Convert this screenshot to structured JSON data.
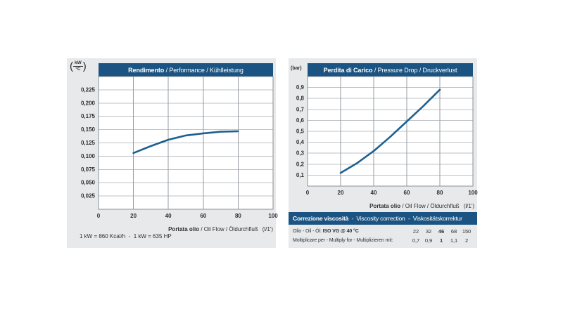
{
  "colors": {
    "panel_bg": "#e8e9ea",
    "header_bg": "#1b5482",
    "header_text": "#ffffff",
    "plot_bg": "#ffffff",
    "plot_border": "#8b9197",
    "grid_vertical": "#979da3",
    "grid_horizontal": "#bec2c6",
    "curve": "#1d608f",
    "text": "#2d3033"
  },
  "chart_data": [
    {
      "type": "line",
      "title": {
        "bold": "Rendimento",
        "rest": " / Performance / Kühlleistung"
      },
      "unit_label": {
        "numerator": "kW",
        "denominator": "°C"
      },
      "xlim": [
        0,
        100
      ],
      "ylim": [
        0,
        0.25
      ],
      "x_ticks": [
        0,
        20,
        40,
        60,
        80,
        100
      ],
      "x_tick_labels": [
        "0",
        "20",
        "40",
        "60",
        "80",
        "100"
      ],
      "y_ticks": [
        0.225,
        0.2,
        0.175,
        0.15,
        0.125,
        0.1,
        0.075,
        0.05,
        0.025
      ],
      "y_tick_labels": [
        "0,225",
        "0,200",
        "0,175",
        "0,150",
        "0,125",
        "0,100",
        "0,075",
        "0,050",
        "0,025"
      ],
      "grid": true,
      "legend": false,
      "series": [
        {
          "name": "cooling-performance",
          "x": [
            20,
            30,
            40,
            50,
            60,
            70,
            80
          ],
          "y": [
            0.106,
            0.119,
            0.131,
            0.139,
            0.143,
            0.146,
            0.147
          ]
        }
      ],
      "xlabel": {
        "bold": "Portata olio",
        "rest": " / Oil Flow / Öldurchfluß",
        "unit": "(l/1')"
      },
      "footnote": "1 kW = 860 Kcal/h  -  1 kW = 635 HP"
    },
    {
      "type": "line",
      "title": {
        "bold": "Perdita di Carico",
        "rest": " / Pressure Drop / Druckverlust"
      },
      "unit_label": {
        "text": "(bar)"
      },
      "xlim": [
        0,
        100
      ],
      "ylim": [
        0,
        1.0
      ],
      "x_ticks": [
        0,
        20,
        40,
        60,
        80,
        100
      ],
      "x_tick_labels": [
        "0",
        "20",
        "40",
        "60",
        "80",
        "100"
      ],
      "y_ticks": [
        0.9,
        0.8,
        0.7,
        0.6,
        0.5,
        0.4,
        0.3,
        0.2,
        0.1
      ],
      "y_tick_labels": [
        "0,9",
        "0,8",
        "0,7",
        "0,6",
        "0,5",
        "0,4",
        "0,3",
        "0,2",
        "0,1"
      ],
      "grid": true,
      "legend": false,
      "series": [
        {
          "name": "pressure-drop",
          "x": [
            20,
            30,
            40,
            50,
            60,
            70,
            80
          ],
          "y": [
            0.12,
            0.21,
            0.32,
            0.45,
            0.59,
            0.73,
            0.88
          ]
        }
      ],
      "xlabel": {
        "bold": "Portata olio",
        "rest": " / Oil Flow / Öldurchfluß",
        "unit": "(l/1')"
      }
    }
  ],
  "viscosity_table": {
    "header": {
      "bold": "Correzione viscosità",
      "rest": "  -  Viscosity correction  -  Viskositätskorrektur"
    },
    "rows": [
      {
        "label_prefix": "Olio - Oil - Öl: ",
        "label_bold": "ISO VG @ 40 °C",
        "values": [
          "22",
          "32",
          "46",
          "68",
          "150"
        ],
        "bold_value_index": 2
      },
      {
        "label_prefix": "Moltiplicare per - Multiply for - Multiplizieren mit:",
        "label_bold": "",
        "values": [
          "0,7",
          "0,9",
          "1",
          "1,1",
          "2"
        ],
        "bold_value_index": 2
      }
    ]
  }
}
